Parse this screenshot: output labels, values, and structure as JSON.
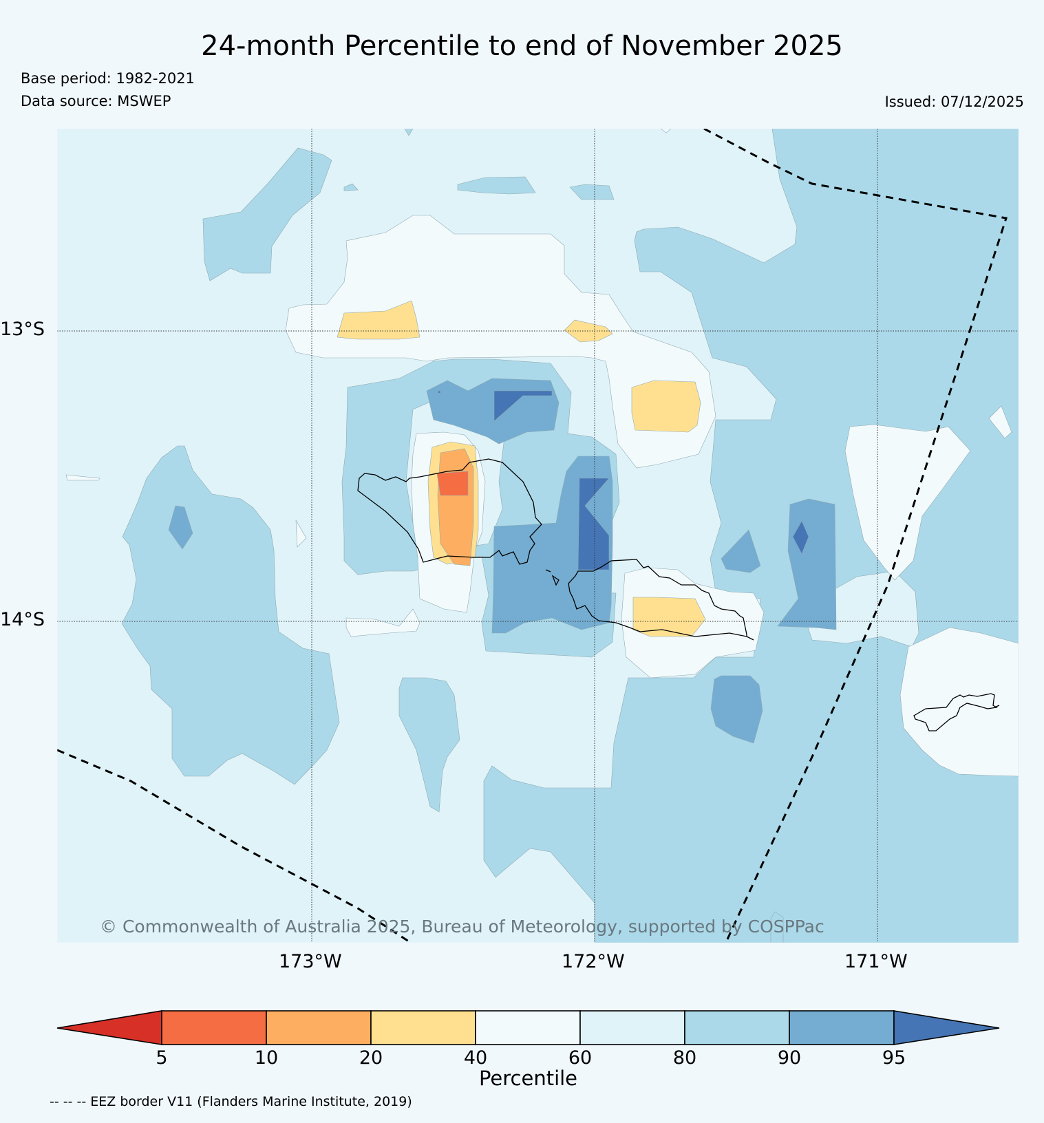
{
  "header": {
    "title": "24-month Percentile to end of November 2025",
    "base_period": "Base period: 1982-2021",
    "data_source": "Data source: MSWEP",
    "issued": "Issued: 07/12/2025"
  },
  "map": {
    "lat_labels": [
      "13°S",
      "14°S"
    ],
    "lon_labels": [
      "173°W",
      "172°W",
      "171°W"
    ],
    "copyright": "© Commonwealth of Australia 2025, Bureau of Meteorology, supported by COSPPac"
  },
  "colorbar": {
    "title": "Percentile",
    "ticks": [
      "5",
      "10",
      "20",
      "40",
      "60",
      "80",
      "90",
      "95"
    ],
    "colors": [
      "#d73027",
      "#f46d43",
      "#fdae61",
      "#fee090",
      "#f3fafc",
      "#e0f3f8",
      "#abd9e9",
      "#74add1",
      "#4575b4"
    ]
  },
  "footnote": "-- -- -- EEZ border V11 (Flanders Marine Institute, 2019)"
}
